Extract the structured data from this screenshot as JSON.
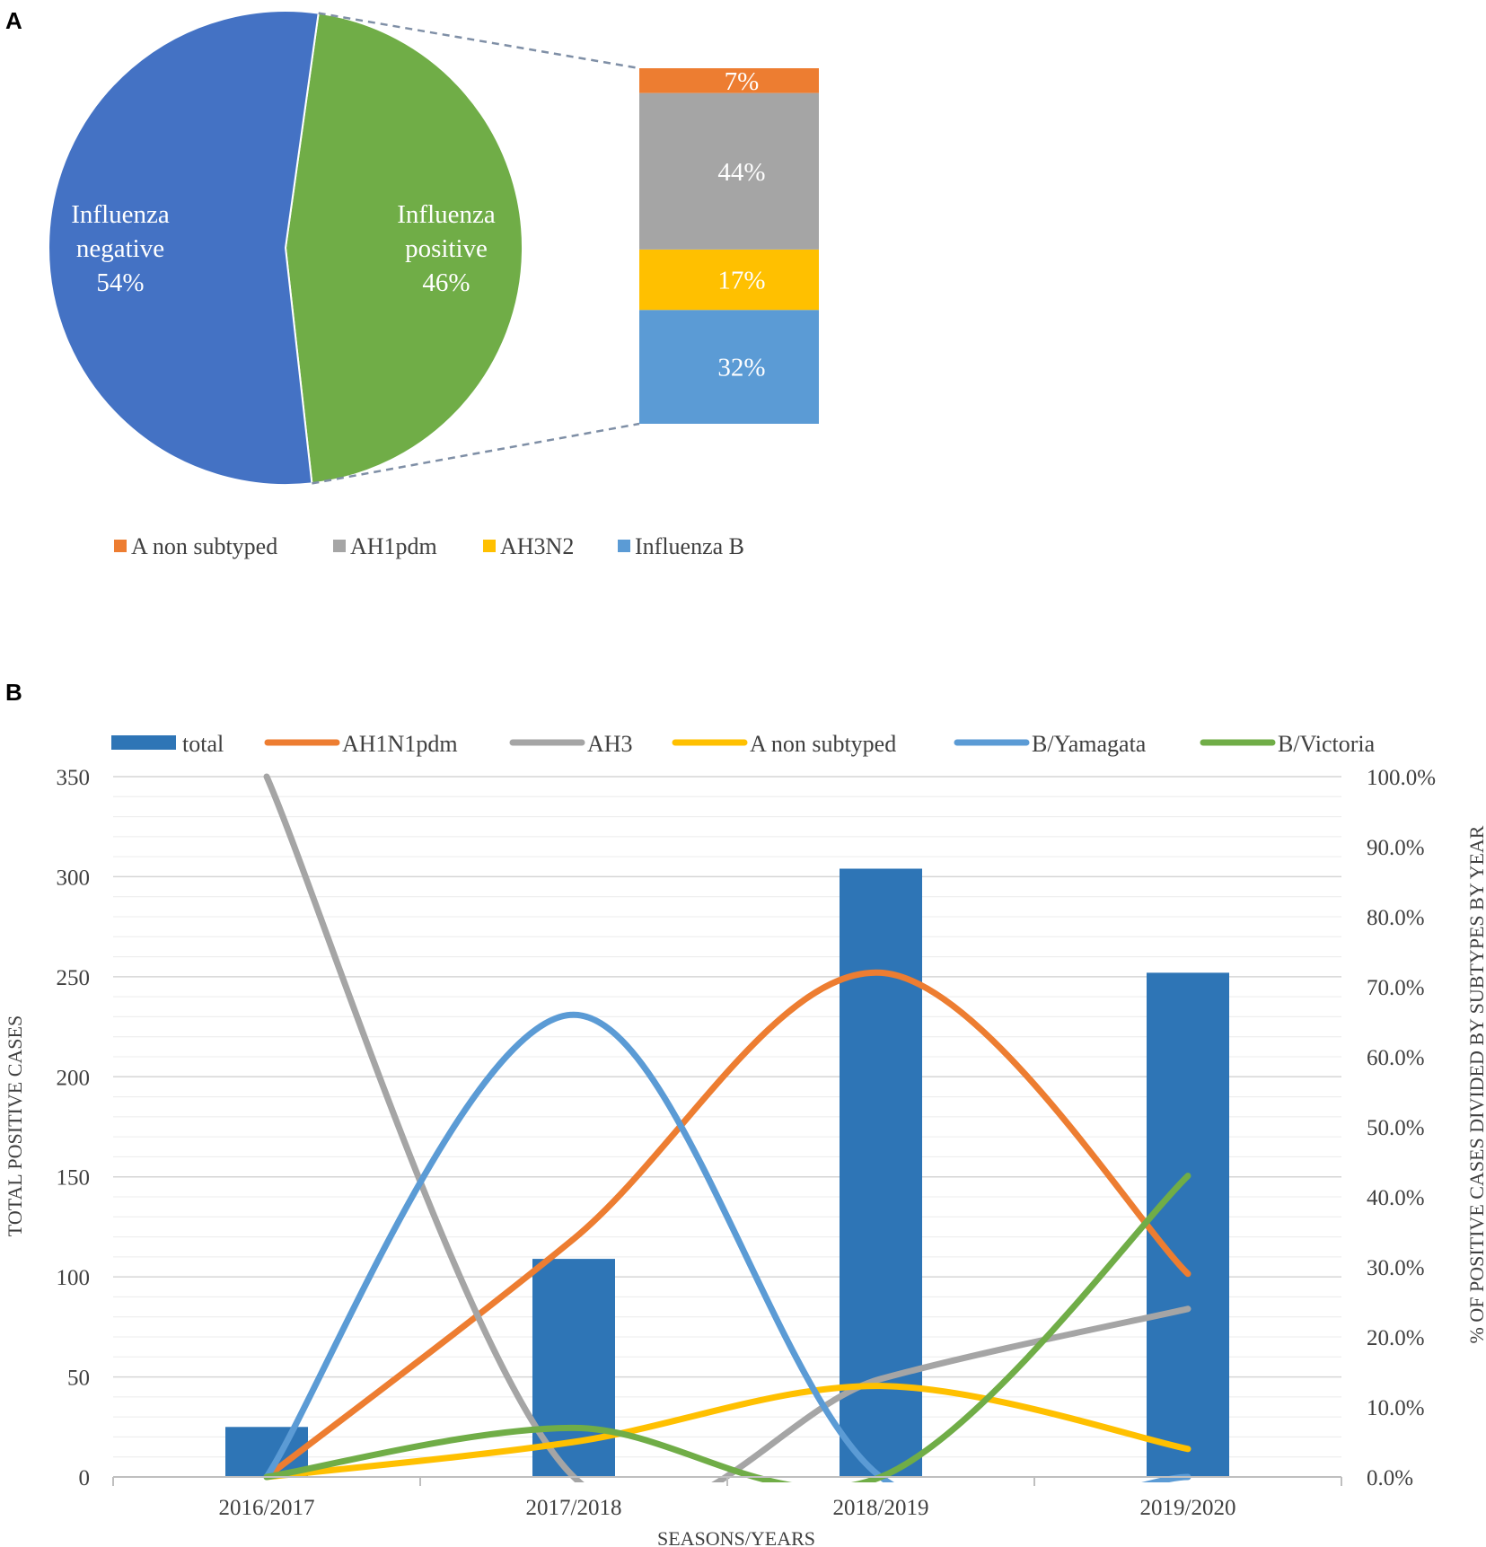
{
  "panels": {
    "a_label": "A",
    "b_label": "B"
  },
  "chart_data": [
    {
      "type": "pie",
      "panel": "A",
      "slices": [
        {
          "name": "Influenza negative",
          "line1": "Influenza",
          "line2": "negative",
          "value": 54,
          "label": "54%",
          "color": "#4472c4"
        },
        {
          "name": "Influenza positive",
          "line1": "Influenza",
          "line2": "positive",
          "value": 46,
          "label": "46%",
          "color": "#70ad47"
        }
      ],
      "breakdown": {
        "type": "stacked-bar",
        "of": "Influenza positive",
        "segments": [
          {
            "name": "A non subtyped",
            "value": 7,
            "label": "7%",
            "color": "#ed7d31"
          },
          {
            "name": "AH1pdm",
            "value": 44,
            "label": "44%",
            "color": "#a5a5a5"
          },
          {
            "name": "AH3N2",
            "value": 17,
            "label": "17%",
            "color": "#ffc000"
          },
          {
            "name": "Influenza B",
            "value": 32,
            "label": "32%",
            "color": "#5b9bd5"
          }
        ]
      },
      "legend": [
        "A non subtyped",
        "AH1pdm",
        "AH3N2",
        "Influenza B"
      ]
    },
    {
      "type": "bar+line",
      "panel": "B",
      "categories": [
        "2016/2017",
        "2017/2018",
        "2018/2019",
        "2019/2020"
      ],
      "xlabel": "SEASONS/YEARS",
      "ylabel": "TOTAL POSITIVE CASES",
      "y2label": "% OF POSITIVE CASES DIVIDED BY  SUBTYPES BY YEAR",
      "ylim": [
        0,
        350
      ],
      "yticks": [
        "0",
        "50",
        "100",
        "150",
        "200",
        "250",
        "300",
        "350"
      ],
      "y2lim": [
        0,
        100
      ],
      "y2ticks": [
        "0.0%",
        "10.0%",
        "20.0%",
        "30.0%",
        "40.0%",
        "50.0%",
        "60.0%",
        "70.0%",
        "80.0%",
        "90.0%",
        "100.0%"
      ],
      "grid": true,
      "legend_position": "top",
      "bars": {
        "name": "total",
        "values": [
          25,
          109,
          304,
          252
        ],
        "color": "#2e75b6"
      },
      "series": [
        {
          "name": "AH1N1pdm",
          "axis": "secondary",
          "values": [
            0,
            34,
            72,
            29
          ],
          "color": "#ed7d31"
        },
        {
          "name": "AH3",
          "axis": "secondary",
          "values": [
            100,
            0,
            14,
            24
          ],
          "color": "#a5a5a5"
        },
        {
          "name": "A non subtyped",
          "axis": "secondary",
          "values": [
            0,
            5,
            13,
            4
          ],
          "color": "#ffc000"
        },
        {
          "name": "B/Yamagata",
          "axis": "secondary",
          "values": [
            0,
            66,
            0,
            0
          ],
          "color": "#5b9bd5"
        },
        {
          "name": "B/Victoria",
          "axis": "secondary",
          "values": [
            0,
            7,
            0,
            43
          ],
          "color": "#70ad47"
        }
      ]
    }
  ]
}
